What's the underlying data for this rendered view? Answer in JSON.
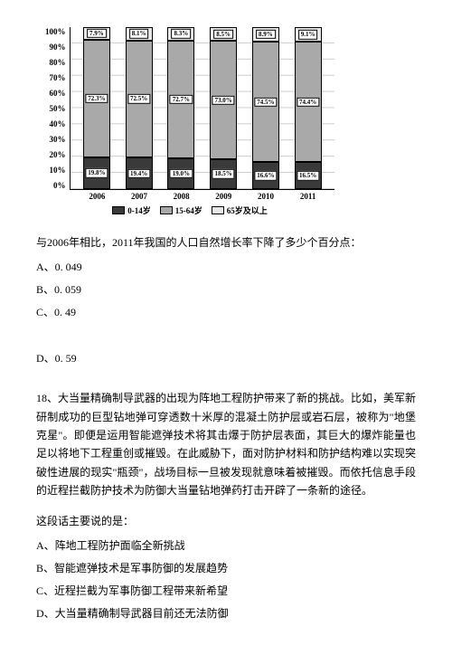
{
  "chart": {
    "type": "stacked-bar-percent",
    "background_color": "#ffffff",
    "grid_color": "#cccccc",
    "ylim": [
      0,
      100
    ],
    "ytick_step": 10,
    "yticks": [
      "100%",
      "90%",
      "80%",
      "70%",
      "60%",
      "50%",
      "40%",
      "30%",
      "20%",
      "10%",
      "0%"
    ],
    "categories": [
      "2006",
      "2007",
      "2008",
      "2009",
      "2010",
      "2011"
    ],
    "series": [
      {
        "name": "0-14岁",
        "color": "#3a3a3a"
      },
      {
        "name": "15-64岁",
        "color": "#a9a9a9"
      },
      {
        "name": "65岁及以上",
        "color": "#e8e8e8"
      }
    ],
    "bars": [
      {
        "bottom": 19.8,
        "middle": 72.3,
        "top": 7.9
      },
      {
        "bottom": 19.4,
        "middle": 72.5,
        "top": 8.1
      },
      {
        "bottom": 19.0,
        "middle": 72.7,
        "top": 8.3
      },
      {
        "bottom": 18.5,
        "middle": 73.0,
        "top": 8.5
      },
      {
        "bottom": 16.6,
        "middle": 74.5,
        "top": 8.9
      },
      {
        "bottom": 16.5,
        "middle": 74.4,
        "top": 9.1
      }
    ],
    "legend_labels": [
      "0-14岁",
      "15-64岁",
      "65岁及以上"
    ]
  },
  "q17": {
    "prompt": "与2006年相比，2011年我国的人口自然增长率下降了多少个百分点：",
    "optionA": "A、0. 049",
    "optionB": "B、0. 059",
    "optionC": "C、0. 49",
    "optionD": "D、0. 59"
  },
  "q18": {
    "number_and_body": "18、大当量精确制导武器的出现为阵地工程防护带来了新的挑战。比如，美军新研制成功的巨型钻地弹可穿透数十米厚的混凝土防护层或岩石层，被称为\"地堡克星\"。即便是运用智能遮弹技术将其击爆于防护层表面，其巨大的爆炸能量也足以将地下工程重创或摧毁。在此威胁下，面对防护材料和防护结构难以实现突破性进展的现实\"瓶颈\"，战场目标一旦被发现就意味着被摧毁。而依托信息手段的近程拦截防护技术为防御大当量钻地弹药打击开辟了一条新的途径。",
    "stem": "这段话主要说的是：",
    "optionA": "A、阵地工程防护面临全新挑战",
    "optionB": "B、智能遮弹技术是军事防御的发展趋势",
    "optionC": "C、近程拦截为军事防御工程带来新希望",
    "optionD": "D、大当量精确制导武器目前还无法防御"
  }
}
